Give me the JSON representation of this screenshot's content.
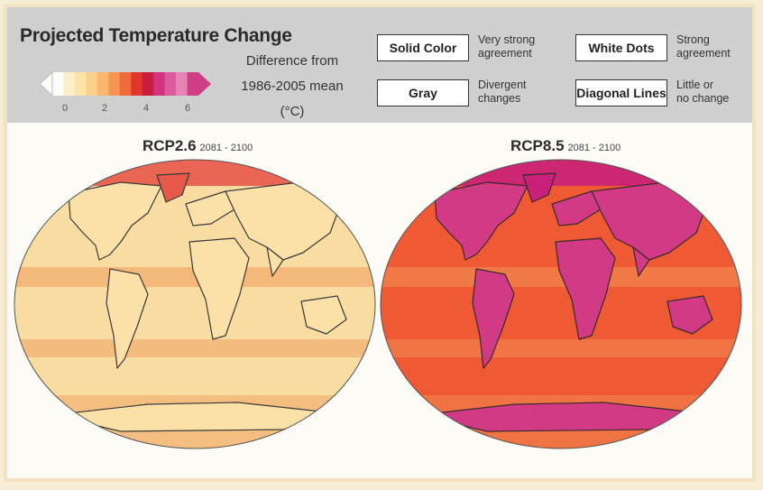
{
  "title": "Projected Temperature Change",
  "colorbar": {
    "ticks": [
      "0",
      "2",
      "4",
      "6"
    ],
    "colors": [
      "#fbfbf7",
      "#fdeec7",
      "#fde3a8",
      "#fbd08a",
      "#f9b76d",
      "#f69455",
      "#ef6a3b",
      "#e0362c",
      "#c81e3d",
      "#d1357f",
      "#db5aa0",
      "#e584b7",
      "#cf3e86"
    ],
    "unit_line1": "Difference from",
    "unit_line2": "1986-2005 mean (°C)"
  },
  "legend": [
    {
      "box": "Solid Color",
      "desc1": "Very strong",
      "desc2": "agreement"
    },
    {
      "box": "Gray",
      "desc1": "Divergent",
      "desc2": "changes"
    },
    {
      "box": "White Dots",
      "desc1": "Strong",
      "desc2": "agreement"
    },
    {
      "box": "Diagonal Lines",
      "desc1": "Little or",
      "desc2": "no change"
    }
  ],
  "maps": [
    {
      "name": "RCP2.6",
      "years": "2081 - 2100",
      "ocean": "#f8dca2",
      "land": "#fbe0a8",
      "accent": "#f1a060",
      "arctic": "#e8584a",
      "coast": "#3a3a3a"
    },
    {
      "name": "RCP8.5",
      "years": "2081 - 2100",
      "ocean": "#ef5a34",
      "land": "#d23a86",
      "accent": "#f28d52",
      "arctic": "#c9207a",
      "coast": "#3a2a2a"
    }
  ]
}
